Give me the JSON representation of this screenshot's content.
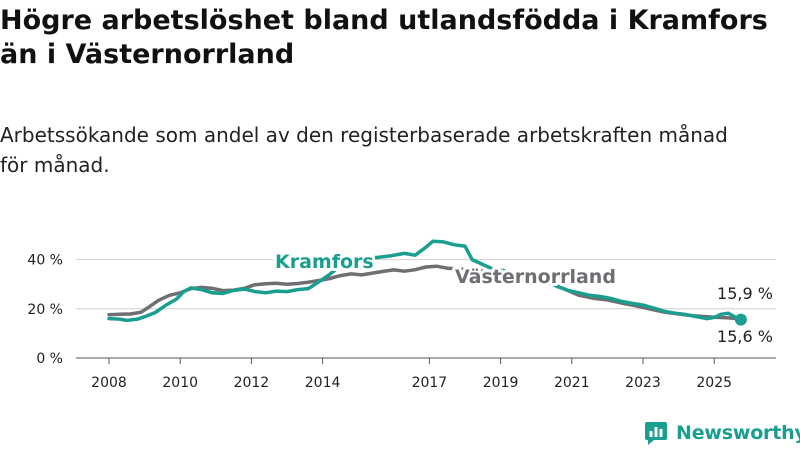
{
  "title": "Högre arbetslöshet bland utlandsfödda i Kramfors\nän i Västernorrland",
  "subtitle": "Arbetssökande som andel av den registerbaserade arbetskraften månad\nför månad.",
  "brand": {
    "name": "Newsworthy",
    "color": "#1a9e8f"
  },
  "chart_data": {
    "type": "line",
    "title": "Högre arbetslöshet bland utlandsfödda i Kramfors än i Västernorrland",
    "subtitle": "Arbetssökande som andel av den registerbaserade arbetskraften månad för månad.",
    "xlabel": "",
    "ylabel": "",
    "ylim": [
      0,
      50
    ],
    "xlim": [
      2008.0,
      2025.75
    ],
    "y_ticks": [
      0,
      20,
      40
    ],
    "y_tick_labels": [
      "0 %",
      "20 %",
      "40 %"
    ],
    "x_ticks": [
      2008,
      2010,
      2012,
      2014,
      2017,
      2019,
      2021,
      2023,
      2025
    ],
    "x_tick_labels": [
      "2008",
      "2010",
      "2012",
      "2014",
      "2017",
      "2019",
      "2021",
      "2023",
      "2025"
    ],
    "grid": "horizontal",
    "series": [
      {
        "name": "Kramfors",
        "color": "#1a9e8f",
        "end_label": "15,6 %",
        "points": [
          [
            2008.0,
            16
          ],
          [
            2008.3,
            15.8
          ],
          [
            2008.5,
            15.3
          ],
          [
            2008.8,
            15.8
          ],
          [
            2009.0,
            16.8
          ],
          [
            2009.3,
            18.5
          ],
          [
            2009.6,
            21.5
          ],
          [
            2009.9,
            24
          ],
          [
            2010.1,
            27
          ],
          [
            2010.3,
            28.5
          ],
          [
            2010.6,
            27.8
          ],
          [
            2010.9,
            26.5
          ],
          [
            2011.2,
            26.2
          ],
          [
            2011.5,
            27.5
          ],
          [
            2011.8,
            28
          ],
          [
            2012.1,
            27
          ],
          [
            2012.4,
            26.5
          ],
          [
            2012.7,
            27.2
          ],
          [
            2013.0,
            27
          ],
          [
            2013.3,
            27.8
          ],
          [
            2013.6,
            28.2
          ],
          [
            2013.9,
            31
          ],
          [
            2014.2,
            34
          ],
          [
            2014.5,
            37.5
          ],
          [
            2014.8,
            40.5
          ],
          [
            2015.1,
            41.2
          ],
          [
            2015.5,
            40.8
          ],
          [
            2015.9,
            41.5
          ],
          [
            2016.3,
            42.5
          ],
          [
            2016.6,
            41.8
          ],
          [
            2016.9,
            45
          ],
          [
            2017.1,
            47.5
          ],
          [
            2017.4,
            47.2
          ],
          [
            2017.7,
            46
          ],
          [
            2018.0,
            45.5
          ],
          [
            2018.2,
            40
          ],
          [
            2018.5,
            38
          ],
          [
            2018.8,
            36
          ],
          [
            2019.1,
            35.5
          ],
          [
            2019.4,
            34.2
          ],
          [
            2019.7,
            33.5
          ],
          [
            2020.0,
            33.2
          ],
          [
            2020.3,
            31
          ],
          [
            2020.6,
            29
          ],
          [
            2020.9,
            27.5
          ],
          [
            2021.2,
            26.5
          ],
          [
            2021.5,
            25.5
          ],
          [
            2021.8,
            25
          ],
          [
            2022.1,
            24.2
          ],
          [
            2022.4,
            23
          ],
          [
            2022.7,
            22.2
          ],
          [
            2023.0,
            21.5
          ],
          [
            2023.3,
            20.3
          ],
          [
            2023.6,
            19
          ],
          [
            2023.9,
            18.2
          ],
          [
            2024.2,
            17.7
          ],
          [
            2024.5,
            16.8
          ],
          [
            2024.8,
            16
          ],
          [
            2025.0,
            16.5
          ],
          [
            2025.2,
            17.8
          ],
          [
            2025.4,
            18.2
          ],
          [
            2025.6,
            16.5
          ],
          [
            2025.75,
            15.6
          ]
        ]
      },
      {
        "name": "Västernorrland",
        "color": "#6e6e73",
        "end_label": "15,9 %",
        "points": [
          [
            2008.0,
            17.6
          ],
          [
            2008.3,
            17.8
          ],
          [
            2008.6,
            17.9
          ],
          [
            2008.9,
            18.6
          ],
          [
            2009.1,
            20.5
          ],
          [
            2009.4,
            23.5
          ],
          [
            2009.7,
            25.5
          ],
          [
            2010.0,
            26.5
          ],
          [
            2010.3,
            28.2
          ],
          [
            2010.6,
            28.7
          ],
          [
            2010.9,
            28.3
          ],
          [
            2011.2,
            27.4
          ],
          [
            2011.5,
            27.6
          ],
          [
            2011.8,
            28.3
          ],
          [
            2012.1,
            29.8
          ],
          [
            2012.4,
            30.2
          ],
          [
            2012.7,
            30.4
          ],
          [
            2013.0,
            30
          ],
          [
            2013.3,
            30.3
          ],
          [
            2013.6,
            30.8
          ],
          [
            2013.9,
            31.5
          ],
          [
            2014.2,
            32.3
          ],
          [
            2014.5,
            33.5
          ],
          [
            2014.8,
            34.2
          ],
          [
            2015.1,
            33.8
          ],
          [
            2015.4,
            34.5
          ],
          [
            2015.7,
            35.2
          ],
          [
            2016.0,
            35.8
          ],
          [
            2016.3,
            35.3
          ],
          [
            2016.6,
            35.9
          ],
          [
            2016.9,
            37
          ],
          [
            2017.2,
            37.3
          ],
          [
            2017.5,
            36.5
          ],
          [
            2017.8,
            36.2
          ],
          [
            2018.1,
            35.9
          ],
          [
            2018.4,
            35.5
          ],
          [
            2018.8,
            34.5
          ],
          [
            2019.2,
            33.5
          ],
          [
            2019.6,
            32.6
          ],
          [
            2020.0,
            32.5
          ],
          [
            2020.4,
            30.5
          ],
          [
            2020.8,
            28
          ],
          [
            2021.2,
            25.5
          ],
          [
            2021.6,
            24.3
          ],
          [
            2022.0,
            23.6
          ],
          [
            2022.4,
            22.3
          ],
          [
            2022.8,
            21.2
          ],
          [
            2023.2,
            19.9
          ],
          [
            2023.6,
            18.6
          ],
          [
            2024.0,
            17.9
          ],
          [
            2024.4,
            17.2
          ],
          [
            2024.8,
            16.8
          ],
          [
            2025.1,
            16.5
          ],
          [
            2025.4,
            16.3
          ],
          [
            2025.75,
            15.9
          ]
        ]
      }
    ],
    "series_labels": [
      "Kramfors",
      "Västernorrland"
    ]
  }
}
